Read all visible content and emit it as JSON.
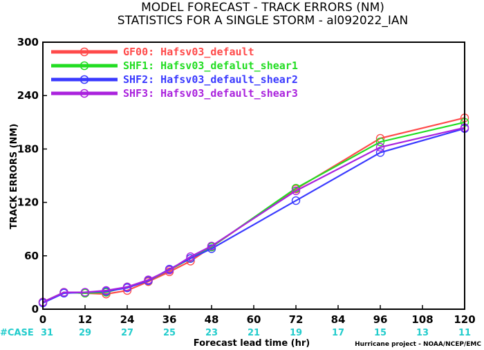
{
  "chart_data": {
    "type": "line",
    "title": "MODEL FORECAST - TRACK ERRORS (NM)",
    "subtitle": "STATISTICS FOR A SINGLE STORM - al092022_IAN",
    "xlabel": "Forecast lead time (hr)",
    "ylabel": "TRACK ERRORS (NM)",
    "xlim": [
      0,
      120
    ],
    "ylim": [
      0,
      300
    ],
    "x_ticks": [
      "0",
      "12",
      "24",
      "36",
      "48",
      "60",
      "72",
      "84",
      "96",
      "108",
      "120"
    ],
    "y_ticks": [
      "0",
      "60",
      "120",
      "180",
      "240",
      "300"
    ],
    "grid": false,
    "legend_position": "top-left",
    "x": [
      0,
      6,
      12,
      18,
      24,
      30,
      36,
      42,
      48,
      72,
      96,
      120
    ],
    "series": [
      {
        "name": "GF00: Hafsv03_default",
        "color": "#ff4a4a",
        "values": [
          8,
          19,
          18,
          17,
          21,
          31,
          42,
          54,
          70,
          135,
          192,
          215
        ]
      },
      {
        "name": "SHF1: Hafsv03_defalut_shear1",
        "color": "#22dd22",
        "values": [
          8,
          19,
          18,
          19,
          25,
          32,
          44,
          57,
          70,
          136,
          188,
          210
        ]
      },
      {
        "name": "SHF2: Hafsv03_default_shear2",
        "color": "#3a3aff",
        "values": [
          7,
          18,
          19,
          20,
          24,
          32,
          45,
          57,
          68,
          122,
          176,
          203
        ]
      },
      {
        "name": "SHF3: Hafsv03_default_shear3",
        "color": "#aa22dd",
        "values": [
          8,
          19,
          19,
          21,
          25,
          33,
          44,
          59,
          71,
          133,
          182,
          204
        ]
      }
    ],
    "cases": {
      "label": "#CASE",
      "x": [
        0,
        12,
        24,
        36,
        48,
        60,
        72,
        84,
        96,
        108,
        120
      ],
      "values": [
        "31",
        "29",
        "27",
        "25",
        "23",
        "21",
        "19",
        "17",
        "15",
        "13",
        "11"
      ],
      "color": "#22cccc"
    },
    "credit": "Hurricane project - NOAA/NCEP/EMC"
  }
}
